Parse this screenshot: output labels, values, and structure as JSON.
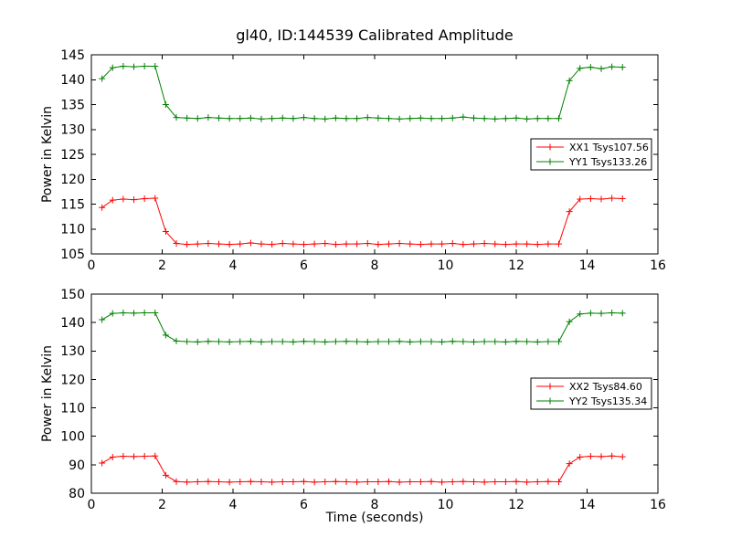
{
  "figure": {
    "title": "gl40, ID:144539 Calibrated Amplitude",
    "background": "#ffffff",
    "frame_color": "#000000"
  },
  "chart_data": [
    {
      "type": "line",
      "title": "",
      "xlabel": "",
      "ylabel": "Power in Kelvin",
      "xlim": [
        0,
        16
      ],
      "ylim": [
        105,
        145
      ],
      "xticks": [
        0,
        2,
        4,
        6,
        8,
        10,
        12,
        14,
        16
      ],
      "yticks": [
        105,
        110,
        115,
        120,
        125,
        130,
        135,
        140,
        145
      ],
      "grid": false,
      "legend_position": "center right",
      "x": [
        0.3,
        0.6,
        0.9,
        1.2,
        1.5,
        1.8,
        2.1,
        2.4,
        2.7,
        3.0,
        3.3,
        3.6,
        3.9,
        4.2,
        4.5,
        4.8,
        5.1,
        5.4,
        5.7,
        6.0,
        6.3,
        6.6,
        6.9,
        7.2,
        7.5,
        7.8,
        8.1,
        8.4,
        8.7,
        9.0,
        9.3,
        9.6,
        9.9,
        10.2,
        10.5,
        10.8,
        11.1,
        11.4,
        11.7,
        12.0,
        12.3,
        12.6,
        12.9,
        13.2,
        13.5,
        13.8,
        14.1,
        14.4,
        14.7,
        15.0
      ],
      "series": [
        {
          "name": "XX1 Tsys107.56",
          "color": "#ff0000",
          "marker": "+",
          "values": [
            114.3,
            115.8,
            116.0,
            115.9,
            116.1,
            116.2,
            109.5,
            107.1,
            106.9,
            107.0,
            107.1,
            107.0,
            106.9,
            107.0,
            107.2,
            107.0,
            106.9,
            107.1,
            107.0,
            106.9,
            107.0,
            107.1,
            106.9,
            107.0,
            107.0,
            107.1,
            106.9,
            107.0,
            107.1,
            107.0,
            106.9,
            107.0,
            107.0,
            107.1,
            106.9,
            107.0,
            107.1,
            107.0,
            106.9,
            107.0,
            107.0,
            106.9,
            107.0,
            107.0,
            113.5,
            116.0,
            116.1,
            116.0,
            116.2,
            116.1
          ]
        },
        {
          "name": "YY1 Tsys133.26",
          "color": "#008000",
          "marker": "+",
          "values": [
            140.2,
            142.4,
            142.7,
            142.6,
            142.7,
            142.7,
            135.0,
            132.4,
            132.3,
            132.2,
            132.4,
            132.3,
            132.2,
            132.2,
            132.3,
            132.1,
            132.2,
            132.3,
            132.2,
            132.4,
            132.2,
            132.1,
            132.3,
            132.2,
            132.2,
            132.4,
            132.3,
            132.2,
            132.1,
            132.2,
            132.3,
            132.2,
            132.2,
            132.3,
            132.5,
            132.3,
            132.2,
            132.1,
            132.2,
            132.3,
            132.1,
            132.2,
            132.2,
            132.2,
            139.8,
            142.3,
            142.5,
            142.2,
            142.6,
            142.5
          ]
        }
      ]
    },
    {
      "type": "line",
      "title": "",
      "xlabel": "Time (seconds)",
      "ylabel": "Power in Kelvin",
      "xlim": [
        0,
        16
      ],
      "ylim": [
        80,
        150
      ],
      "xticks": [
        0,
        2,
        4,
        6,
        8,
        10,
        12,
        14,
        16
      ],
      "yticks": [
        80,
        90,
        100,
        110,
        120,
        130,
        140,
        150
      ],
      "grid": false,
      "legend_position": "center right",
      "x": [
        0.3,
        0.6,
        0.9,
        1.2,
        1.5,
        1.8,
        2.1,
        2.4,
        2.7,
        3.0,
        3.3,
        3.6,
        3.9,
        4.2,
        4.5,
        4.8,
        5.1,
        5.4,
        5.7,
        6.0,
        6.3,
        6.6,
        6.9,
        7.2,
        7.5,
        7.8,
        8.1,
        8.4,
        8.7,
        9.0,
        9.3,
        9.6,
        9.9,
        10.2,
        10.5,
        10.8,
        11.1,
        11.4,
        11.7,
        12.0,
        12.3,
        12.6,
        12.9,
        13.2,
        13.5,
        13.8,
        14.1,
        14.4,
        14.7,
        15.0
      ],
      "series": [
        {
          "name": "XX2 Tsys84.60",
          "color": "#ff0000",
          "marker": "+",
          "values": [
            90.6,
            92.7,
            93.0,
            92.9,
            93.0,
            93.1,
            86.3,
            84.1,
            83.9,
            84.0,
            84.1,
            84.0,
            83.9,
            84.0,
            84.1,
            84.0,
            83.9,
            84.0,
            84.0,
            84.1,
            83.9,
            84.0,
            84.1,
            84.0,
            83.9,
            84.0,
            84.0,
            84.1,
            83.9,
            84.0,
            84.0,
            84.1,
            83.9,
            84.0,
            84.1,
            84.0,
            83.9,
            84.0,
            84.0,
            84.1,
            83.9,
            84.0,
            84.1,
            84.0,
            90.4,
            92.7,
            93.0,
            92.9,
            93.1,
            92.8
          ]
        },
        {
          "name": "YY2 Tsys135.34",
          "color": "#008000",
          "marker": "+",
          "values": [
            141.0,
            143.2,
            143.4,
            143.3,
            143.4,
            143.4,
            135.6,
            133.5,
            133.3,
            133.2,
            133.4,
            133.3,
            133.2,
            133.3,
            133.4,
            133.2,
            133.3,
            133.3,
            133.2,
            133.4,
            133.3,
            133.2,
            133.3,
            133.4,
            133.3,
            133.2,
            133.3,
            133.3,
            133.4,
            133.2,
            133.3,
            133.3,
            133.2,
            133.4,
            133.3,
            133.2,
            133.3,
            133.3,
            133.2,
            133.4,
            133.3,
            133.2,
            133.3,
            133.3,
            140.3,
            143.0,
            143.3,
            143.2,
            143.4,
            143.3
          ]
        }
      ]
    }
  ]
}
